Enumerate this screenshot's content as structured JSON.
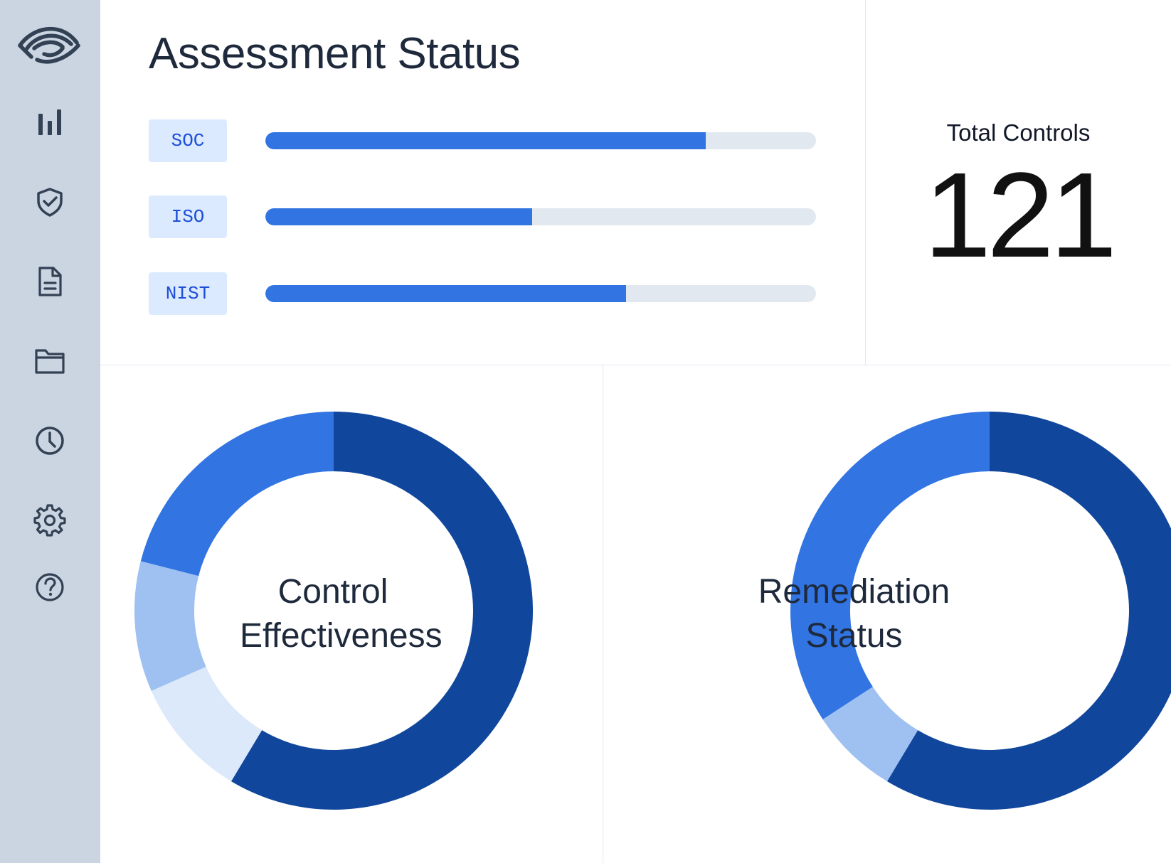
{
  "sidebar": {
    "logo": "eye-logo-icon",
    "items": [
      {
        "icon": "bar-chart-icon"
      },
      {
        "icon": "shield-check-icon"
      },
      {
        "icon": "document-icon"
      },
      {
        "icon": "folder-icon"
      },
      {
        "icon": "clock-icon"
      },
      {
        "icon": "gear-icon"
      },
      {
        "icon": "help-icon"
      }
    ]
  },
  "assessment": {
    "title": "Assessment Status",
    "frameworks": [
      {
        "label": "SOC",
        "progress": 0.8
      },
      {
        "label": "ISO",
        "progress": 0.485
      },
      {
        "label": "NIST",
        "progress": 0.655
      }
    ]
  },
  "total_controls": {
    "label": "Total Controls",
    "value": "121"
  },
  "colors": {
    "dark_blue": "#10479c",
    "blue": "#3174e2",
    "light_blue": "#9fc1f2",
    "pale_blue": "#dbe9fb",
    "track": "#e2e8f0",
    "sidebar": "#cbd5e1"
  },
  "chart_data": [
    {
      "type": "pie",
      "title": "Control Effectiveness",
      "values": [
        58.6,
        9.8,
        10.6,
        21.0
      ],
      "colors": [
        "#10479c",
        "#dbe9fb",
        "#9fc1f2",
        "#3174e2"
      ]
    },
    {
      "type": "pie",
      "title": "Remediation Status",
      "values": [
        58.6,
        7.2,
        34.2
      ],
      "colors": [
        "#10479c",
        "#9fc1f2",
        "#3174e2"
      ]
    }
  ]
}
